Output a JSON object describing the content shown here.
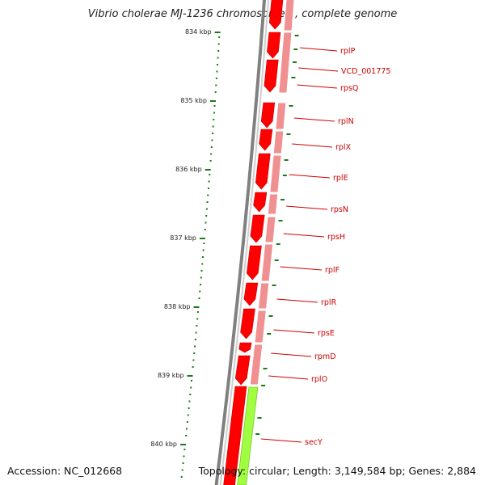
{
  "title": "Vibrio cholerae MJ-1236 chromosome 1, complete genome",
  "footer": {
    "accession": "Accession: NC_012668",
    "stats": "Topology: circular; Length: 3,149,584 bp; Genes: 2,884"
  },
  "colors": {
    "backbone": "#808080",
    "forward_track": "#ff0000",
    "forward_dark": "#c80000",
    "reverse_track": "#f09090",
    "secY_gene": "#a0ff40",
    "ticks": "#1a7a1a",
    "labels": "#cc0000"
  },
  "kbp_ticks": [
    "834 kbp",
    "835 kbp",
    "836 kbp",
    "837 kbp",
    "838 kbp",
    "839 kbp",
    "840 kbp"
  ],
  "genes": [
    "rplP",
    "VCD_001775",
    "rpsQ",
    "rplN",
    "rplX",
    "rplE",
    "rpsN",
    "rpsH",
    "rplF",
    "rplR",
    "rpsE",
    "rpmD",
    "rplO",
    "secY"
  ]
}
